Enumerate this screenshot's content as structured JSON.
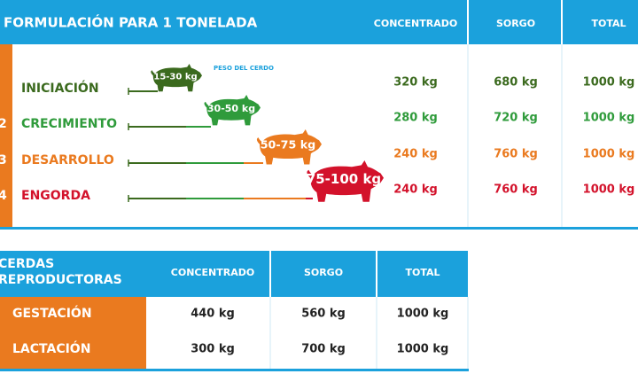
{
  "header": {
    "title": "FORMULACIÓN PARA 1 TONELADA",
    "columns": [
      "CONCENTRADO",
      "SORGO",
      "TOTAL"
    ]
  },
  "weight_caption": "PESO DEL CERDO",
  "stages": [
    {
      "name": "INICIACIÓN",
      "weight": "15-30 kg",
      "concentrado": "320 kg",
      "sorgo": "680 kg",
      "total": "1000 kg"
    },
    {
      "number": "2",
      "name": "CRECIMIENTO",
      "weight": "30-50 kg",
      "concentrado": "280 kg",
      "sorgo": "720 kg",
      "total": "1000 kg"
    },
    {
      "number": "3",
      "name": "DESARROLLO",
      "weight": "50-75 kg",
      "concentrado": "240 kg",
      "sorgo": "760 kg",
      "total": "1000 kg"
    },
    {
      "number": "4",
      "name": "ENGORDA",
      "weight": "75-100 kg",
      "concentrado": "240 kg",
      "sorgo": "760 kg",
      "total": "1000 kg"
    }
  ],
  "breeding": {
    "title_lines": [
      "CERDAS",
      "REPRODUCTORAS"
    ],
    "columns": [
      "CONCENTRADO",
      "SORGO",
      "TOTAL"
    ],
    "rows": [
      {
        "name": "GESTACIÓN",
        "concentrado": "440 kg",
        "sorgo": "560 kg",
        "total": "1000 kg"
      },
      {
        "name": "LACTACIÓN",
        "concentrado": "300 kg",
        "sorgo": "700 kg",
        "total": "1000 kg"
      }
    ]
  }
}
